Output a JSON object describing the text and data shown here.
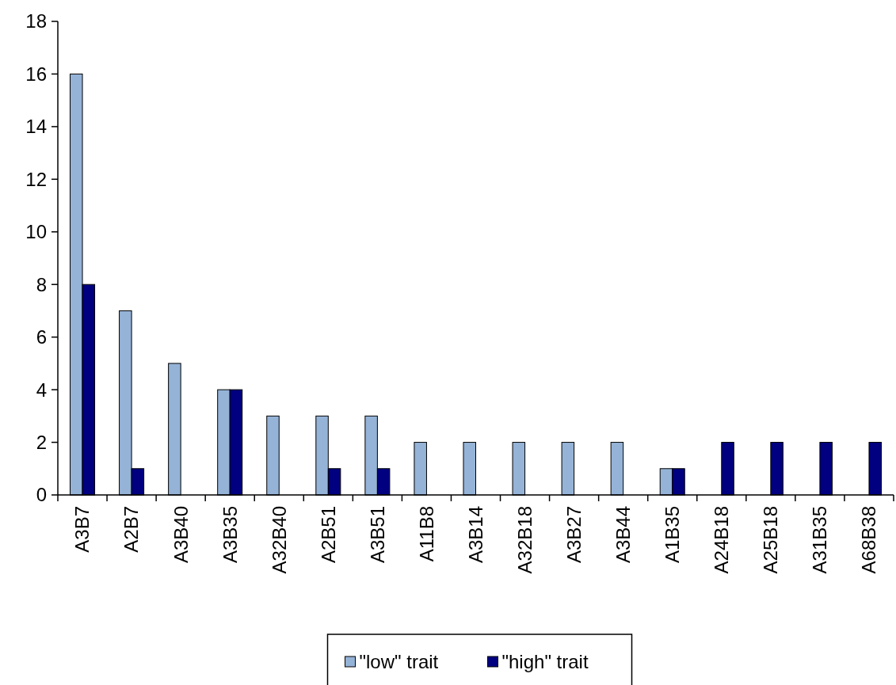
{
  "chart_data": {
    "type": "bar",
    "categories": [
      "A3B7",
      "A2B7",
      "A3B40",
      "A3B35",
      "A32B40",
      "A2B51",
      "A3B51",
      "A11B8",
      "A3B14",
      "A32B18",
      "A3B27",
      "A3B44",
      "A1B35",
      "A24B18",
      "A25B18",
      "A31B35",
      "A68B38"
    ],
    "series": [
      {
        "name": "\"low\" trait",
        "color": "#95b3d7",
        "values": [
          16,
          7,
          5,
          4,
          3,
          3,
          3,
          2,
          2,
          2,
          2,
          2,
          1,
          0,
          0,
          0,
          0
        ]
      },
      {
        "name": "\"high\" trait",
        "color": "#000080",
        "values": [
          8,
          1,
          0,
          4,
          0,
          1,
          1,
          0,
          0,
          0,
          0,
          0,
          1,
          2,
          2,
          2,
          2
        ]
      }
    ],
    "ylim": [
      0,
      18
    ],
    "yticks": [
      0,
      2,
      4,
      6,
      8,
      10,
      12,
      14,
      16,
      18
    ],
    "grid": false,
    "legend": "bottom"
  }
}
